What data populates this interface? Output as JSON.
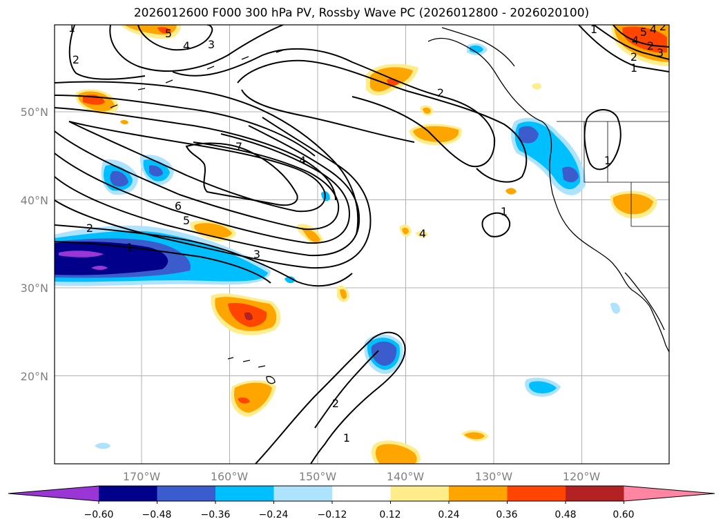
{
  "title": "2026012600 F000 300 hPa PV, Rossby Wave PC (2026012800 - 2026020100)",
  "map": {
    "lat_labels": [
      {
        "lat": 50,
        "text": "50°N"
      },
      {
        "lat": 40,
        "text": "40°N"
      },
      {
        "lat": 30,
        "text": "30°N"
      },
      {
        "lat": 20,
        "text": "20°N"
      }
    ],
    "lon_labels": [
      {
        "lon": -170,
        "text": "170°W"
      },
      {
        "lon": -160,
        "text": "160°W"
      },
      {
        "lon": -150,
        "text": "150°W"
      },
      {
        "lon": -140,
        "text": "140°W"
      },
      {
        "lon": -130,
        "text": "130°W"
      },
      {
        "lon": -120,
        "text": "120°W"
      }
    ],
    "contour_labels": [
      "1",
      "2",
      "2",
      "2",
      "3",
      "4",
      "5",
      "7",
      "4",
      "6",
      "5",
      "2",
      "1",
      "3",
      "1",
      "2",
      "1",
      "4",
      "5",
      "4",
      "3",
      "2",
      "1",
      "1",
      "4",
      "2",
      "1"
    ]
  },
  "colorbar": {
    "colors": [
      "#9a35d6",
      "#00008b",
      "#3a5ccc",
      "#00bfff",
      "#aee3ff",
      "#ffffff",
      "#ffec8b",
      "#ffa500",
      "#ff4500",
      "#b22222",
      "#ff85a2"
    ],
    "ticks": [
      "−0.60",
      "−0.48",
      "−0.36",
      "−0.24",
      "−0.12",
      "0.12",
      "0.24",
      "0.36",
      "0.48",
      "0.60"
    ]
  }
}
